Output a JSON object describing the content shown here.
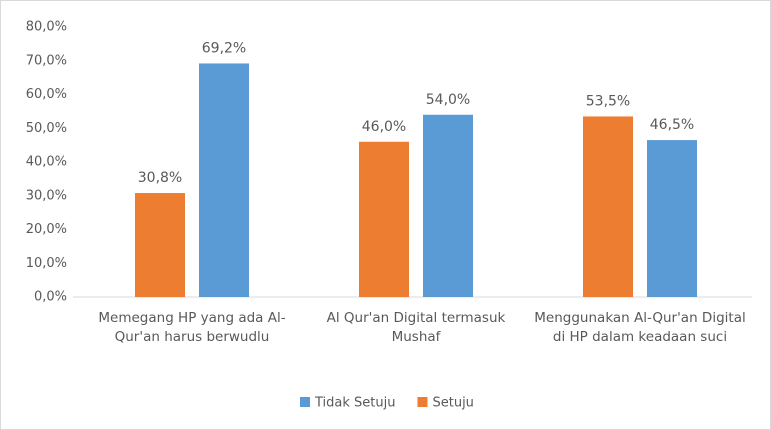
{
  "chart_data": {
    "type": "bar",
    "categories": [
      "Memegang HP yang ada Al-Qur'an harus berwudlu",
      "Al Qur'an Digital termasuk Mushaf",
      "Menggunakan Al-Qur'an Digital di HP dalam keadaan suci"
    ],
    "series": [
      {
        "name": "Setuju",
        "color": "#ed7d31",
        "values": [
          30.8,
          46.0,
          53.5
        ],
        "value_labels": [
          "30,8%",
          "46,0%",
          "53,5%"
        ]
      },
      {
        "name": "Tidak Setuju",
        "color": "#5b9bd5",
        "values": [
          69.2,
          54.0,
          46.5
        ],
        "value_labels": [
          "69,2%",
          "54,0%",
          "46,5%"
        ]
      }
    ],
    "ylim": [
      0,
      80
    ],
    "yticks": [
      {
        "value": 0,
        "label": "0,0%"
      },
      {
        "value": 10,
        "label": "10,0%"
      },
      {
        "value": 20,
        "label": "20,0%"
      },
      {
        "value": 30,
        "label": "30,0%"
      },
      {
        "value": 40,
        "label": "40,0%"
      },
      {
        "value": 50,
        "label": "50,0%"
      },
      {
        "value": 60,
        "label": "60,0%"
      },
      {
        "value": 70,
        "label": "70,0%"
      },
      {
        "value": 80,
        "label": "80,0%"
      }
    ],
    "legend": "bottom"
  }
}
